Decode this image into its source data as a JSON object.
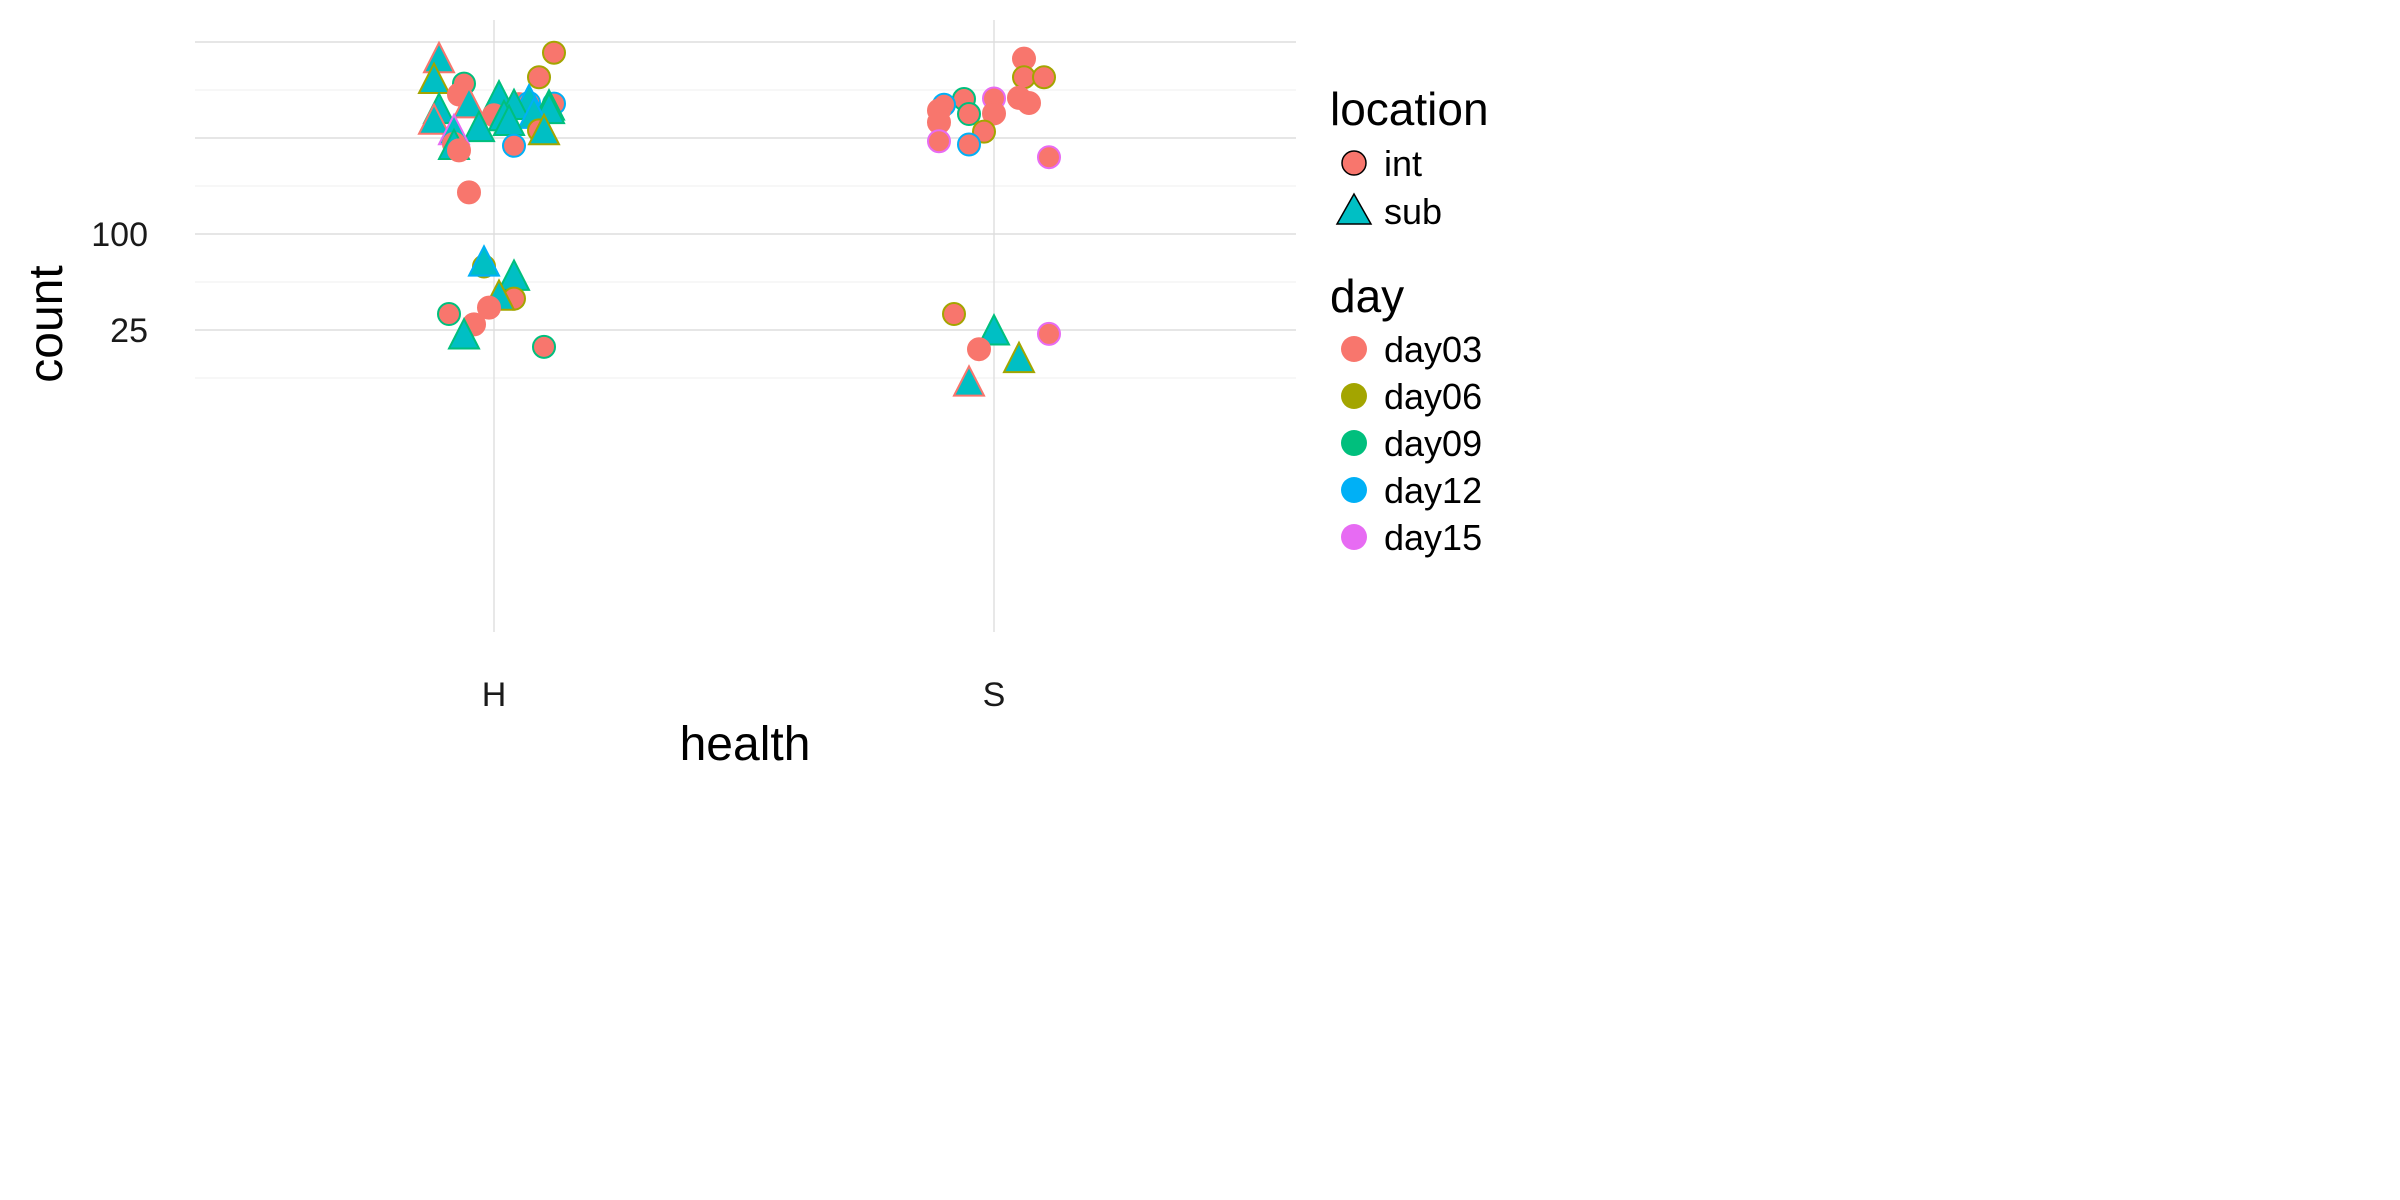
{
  "chart_data": {
    "type": "scatter",
    "xlabel": "health",
    "ylabel": "count",
    "categories": [
      "H",
      "S"
    ],
    "y_scale": "sqrt",
    "y_ticks": [
      25,
      100
    ],
    "grid": true,
    "legend_position": "right",
    "shape_legend": {
      "title": "location",
      "entries": [
        {
          "label": "int",
          "shape": "circle"
        },
        {
          "label": "sub",
          "shape": "triangle"
        }
      ]
    },
    "color_legend": {
      "title": "day",
      "entries": [
        {
          "label": "day03",
          "color": "#F8766D"
        },
        {
          "label": "day06",
          "color": "#A3A500"
        },
        {
          "label": "day09",
          "color": "#00BF7D"
        },
        {
          "label": "day12",
          "color": "#00B0F6"
        },
        {
          "label": "day15",
          "color": "#E76BF3"
        }
      ]
    },
    "points": [
      {
        "x": "H",
        "j": -0.11,
        "y": 364,
        "loc": "sub",
        "day": "day03"
      },
      {
        "x": "H",
        "j": 0.12,
        "y": 378,
        "loc": "int",
        "day": "day06"
      },
      {
        "x": "H",
        "j": -0.12,
        "y": 324,
        "loc": "sub",
        "day": "day06"
      },
      {
        "x": "H",
        "j": -0.06,
        "y": 318,
        "loc": "int",
        "day": "day09"
      },
      {
        "x": "H",
        "j": 0.09,
        "y": 330,
        "loc": "int",
        "day": "day06"
      },
      {
        "x": "H",
        "j": -0.07,
        "y": 298,
        "loc": "int",
        "day": "day03"
      },
      {
        "x": "H",
        "j": 0.01,
        "y": 292,
        "loc": "sub",
        "day": "day09"
      },
      {
        "x": "H",
        "j": -0.05,
        "y": 280,
        "loc": "sub",
        "day": "day03"
      },
      {
        "x": "H",
        "j": 0.05,
        "y": 281,
        "loc": "int",
        "day": "day03"
      },
      {
        "x": "H",
        "j": 0.07,
        "y": 283,
        "loc": "int",
        "day": "day12"
      },
      {
        "x": "H",
        "j": 0.12,
        "y": 282,
        "loc": "int",
        "day": "day12"
      },
      {
        "x": "H",
        "j": 0.07,
        "y": 285,
        "loc": "sub",
        "day": "day12"
      },
      {
        "x": "H",
        "j": 0.04,
        "y": 277,
        "loc": "sub",
        "day": "day09"
      },
      {
        "x": "H",
        "j": 0.11,
        "y": 276,
        "loc": "sub",
        "day": "day09"
      },
      {
        "x": "H",
        "j": -0.11,
        "y": 270,
        "loc": "sub",
        "day": "day09"
      },
      {
        "x": "H",
        "j": 0.0,
        "y": 262,
        "loc": "int",
        "day": "day03"
      },
      {
        "x": "H",
        "j": 0.02,
        "y": 258,
        "loc": "sub",
        "day": "day09"
      },
      {
        "x": "H",
        "j": 0.11,
        "y": 270,
        "loc": "sub",
        "day": "day09"
      },
      {
        "x": "H",
        "j": 0.08,
        "y": 262,
        "loc": "sub",
        "day": "day12"
      },
      {
        "x": "H",
        "j": -0.12,
        "y": 252,
        "loc": "sub",
        "day": "day03"
      },
      {
        "x": "H",
        "j": 0.03,
        "y": 250,
        "loc": "sub",
        "day": "day09"
      },
      {
        "x": "H",
        "j": -0.03,
        "y": 240,
        "loc": "sub",
        "day": "day09"
      },
      {
        "x": "H",
        "j": -0.08,
        "y": 235,
        "loc": "sub",
        "day": "day15"
      },
      {
        "x": "H",
        "j": 0.09,
        "y": 237,
        "loc": "int",
        "day": "day06"
      },
      {
        "x": "H",
        "j": 0.1,
        "y": 235,
        "loc": "sub",
        "day": "day06"
      },
      {
        "x": "H",
        "j": -0.08,
        "y": 216,
        "loc": "int",
        "day": "day03"
      },
      {
        "x": "H",
        "j": 0.04,
        "y": 213,
        "loc": "int",
        "day": "day12"
      },
      {
        "x": "H",
        "j": -0.08,
        "y": 212,
        "loc": "sub",
        "day": "day09"
      },
      {
        "x": "H",
        "j": -0.07,
        "y": 206,
        "loc": "int",
        "day": "day03"
      },
      {
        "x": "H",
        "j": -0.05,
        "y": 148,
        "loc": "int",
        "day": "day03"
      },
      {
        "x": "H",
        "j": -0.02,
        "y": 69,
        "loc": "int",
        "day": "day06"
      },
      {
        "x": "H",
        "j": -0.02,
        "y": 72,
        "loc": "sub",
        "day": "day12"
      },
      {
        "x": "H",
        "j": 0.04,
        "y": 60,
        "loc": "sub",
        "day": "day09"
      },
      {
        "x": "H",
        "j": 0.04,
        "y": 44,
        "loc": "int",
        "day": "day06"
      },
      {
        "x": "H",
        "j": 0.01,
        "y": 45,
        "loc": "sub",
        "day": "day06"
      },
      {
        "x": "H",
        "j": -0.01,
        "y": 38,
        "loc": "int",
        "day": "day03"
      },
      {
        "x": "H",
        "j": -0.09,
        "y": 34,
        "loc": "int",
        "day": "day09"
      },
      {
        "x": "H",
        "j": -0.04,
        "y": 28,
        "loc": "int",
        "day": "day03"
      },
      {
        "x": "H",
        "j": -0.06,
        "y": 22,
        "loc": "sub",
        "day": "day09"
      },
      {
        "x": "H",
        "j": 0.1,
        "y": 17,
        "loc": "int",
        "day": "day09"
      },
      {
        "x": "S",
        "j": 0.06,
        "y": 366,
        "loc": "int",
        "day": "day03"
      },
      {
        "x": "S",
        "j": 0.06,
        "y": 330,
        "loc": "int",
        "day": "day06"
      },
      {
        "x": "S",
        "j": 0.1,
        "y": 330,
        "loc": "int",
        "day": "day06"
      },
      {
        "x": "S",
        "j": -0.06,
        "y": 290,
        "loc": "int",
        "day": "day09"
      },
      {
        "x": "S",
        "j": 0.0,
        "y": 291,
        "loc": "int",
        "day": "day15"
      },
      {
        "x": "S",
        "j": 0.05,
        "y": 292,
        "loc": "int",
        "day": "day03"
      },
      {
        "x": "S",
        "j": 0.07,
        "y": 283,
        "loc": "int",
        "day": "day03"
      },
      {
        "x": "S",
        "j": -0.1,
        "y": 280,
        "loc": "int",
        "day": "day12"
      },
      {
        "x": "S",
        "j": -0.11,
        "y": 270,
        "loc": "int",
        "day": "day03"
      },
      {
        "x": "S",
        "j": -0.05,
        "y": 264,
        "loc": "int",
        "day": "day09"
      },
      {
        "x": "S",
        "j": 0.0,
        "y": 265,
        "loc": "int",
        "day": "day03"
      },
      {
        "x": "S",
        "j": -0.11,
        "y": 250,
        "loc": "int",
        "day": "day03"
      },
      {
        "x": "S",
        "j": -0.02,
        "y": 235,
        "loc": "int",
        "day": "day06"
      },
      {
        "x": "S",
        "j": -0.11,
        "y": 220,
        "loc": "int",
        "day": "day15"
      },
      {
        "x": "S",
        "j": -0.05,
        "y": 215,
        "loc": "int",
        "day": "day12"
      },
      {
        "x": "S",
        "j": 0.11,
        "y": 196,
        "loc": "int",
        "day": "day15"
      },
      {
        "x": "S",
        "j": -0.08,
        "y": 34,
        "loc": "int",
        "day": "day06"
      },
      {
        "x": "S",
        "j": 0.11,
        "y": 23,
        "loc": "int",
        "day": "day15"
      },
      {
        "x": "S",
        "j": 0.0,
        "y": 24,
        "loc": "sub",
        "day": "day09"
      },
      {
        "x": "S",
        "j": -0.03,
        "y": 16,
        "loc": "int",
        "day": "day03"
      },
      {
        "x": "S",
        "j": 0.05,
        "y": 12,
        "loc": "sub",
        "day": "day06"
      },
      {
        "x": "S",
        "j": -0.05,
        "y": 5,
        "loc": "sub",
        "day": "day03"
      }
    ]
  }
}
